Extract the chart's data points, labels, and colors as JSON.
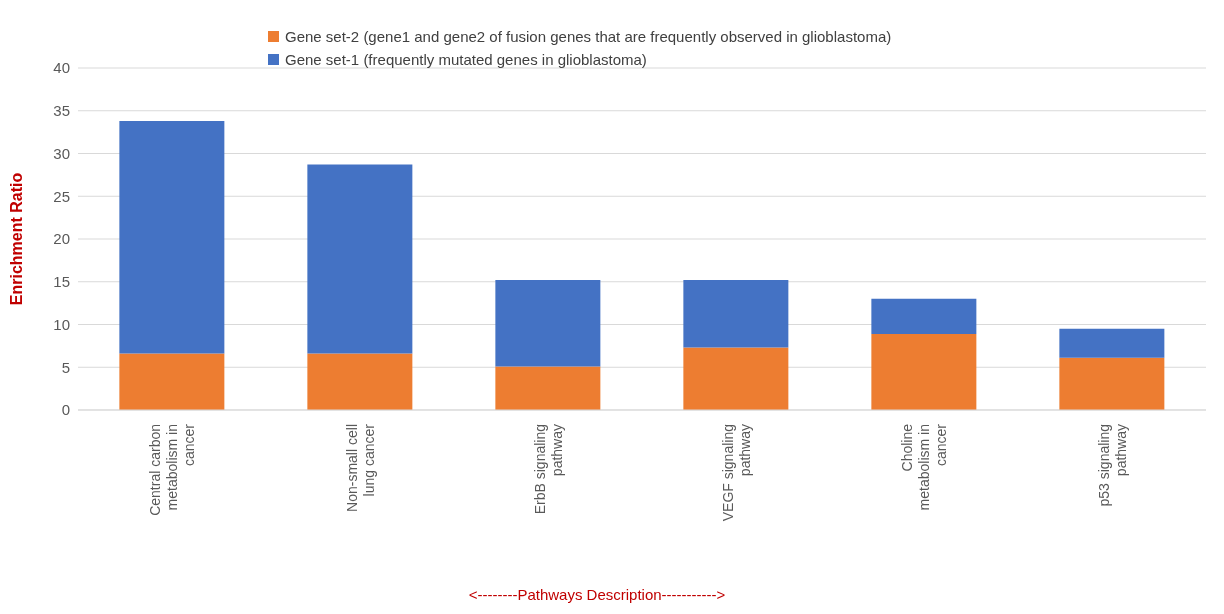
{
  "chart_data": {
    "type": "bar",
    "stacked": true,
    "ylabel": "Enrichment Ratio",
    "xlabel": "<--------Pathways Description----------->",
    "categories": [
      "Central carbon metabolism in cancer",
      "Non-small cell lung cancer",
      "ErbB signaling pathway",
      "VEGF signaling pathway",
      "Choline metabolism in cancer",
      "p53 signaling pathway"
    ],
    "series": [
      {
        "name": "Gene set-2 (gene1 and gene2 of fusion genes that are frequently observed in glioblastoma)",
        "color": "#ed7d31",
        "values": [
          6.6,
          6.6,
          5.1,
          7.3,
          8.9,
          6.1
        ]
      },
      {
        "name": "Gene set-1 (frequently mutated genes in glioblastoma)",
        "color": "#4472c4",
        "values": [
          27.2,
          22.1,
          10.1,
          7.9,
          4.1,
          3.4
        ]
      }
    ],
    "ylim": [
      0,
      40
    ],
    "yticks": [
      0,
      5,
      10,
      15,
      20,
      25,
      30,
      35,
      40
    ],
    "grid": "y",
    "legend": "top"
  }
}
